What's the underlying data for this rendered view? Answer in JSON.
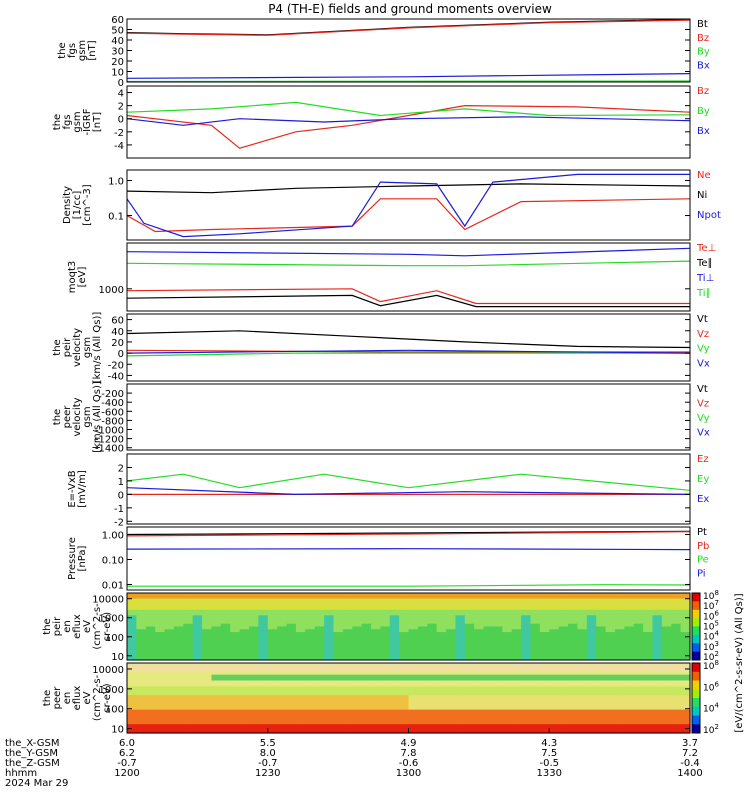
{
  "title": "P4 (TH-E) fields and ground moments overview",
  "colors": {
    "black": "#000000",
    "red": "#e8281e",
    "green": "#22dd22",
    "blue": "#1a1adc"
  },
  "chart_data": {
    "type": "line",
    "time_axis": {
      "ticks": [
        "1200",
        "1230",
        "1300",
        "1330",
        "1400"
      ],
      "date": "2024 Mar 29",
      "ephemeris": [
        {
          "label": "the_X-GSM",
          "values": [
            "6.0",
            "5.5",
            "4.9",
            "4.3",
            "3.7"
          ]
        },
        {
          "label": "the_Y-GSM",
          "values": [
            "6.2",
            "8.0",
            "7.8",
            "7.5",
            "7.2"
          ]
        },
        {
          "label": "the_Z-GSM",
          "values": [
            "-0.7",
            "-0.7",
            "-0.6",
            "-0.5",
            "-0.4"
          ]
        },
        {
          "label": "hhmm",
          "values": [
            "1200",
            "1230",
            "1300",
            "1330",
            "1400"
          ]
        }
      ]
    },
    "panels": [
      {
        "ylabel": [
          "the",
          "fgs",
          "gsm",
          "[nT]"
        ],
        "ylim": [
          0,
          60
        ],
        "ticks": [
          "0",
          "10",
          "20",
          "30",
          "40",
          "50",
          "60"
        ],
        "series": [
          {
            "name": "Bt",
            "color": "#000000",
            "points": [
              [
                0,
                47
              ],
              [
                0.1,
                46
              ],
              [
                0.25,
                45
              ],
              [
                0.5,
                52
              ],
              [
                0.75,
                57
              ],
              [
                1,
                59.5
              ]
            ]
          },
          {
            "name": "Bz",
            "color": "#e8281e",
            "points": [
              [
                0,
                46.5
              ],
              [
                0.1,
                45.5
              ],
              [
                0.25,
                44.5
              ],
              [
                0.5,
                51.5
              ],
              [
                0.75,
                56.5
              ],
              [
                1,
                59
              ]
            ]
          },
          {
            "name": "By",
            "color": "#22dd22",
            "points": [
              [
                0,
                0.5
              ],
              [
                0.5,
                0.8
              ],
              [
                1,
                1
              ]
            ]
          },
          {
            "name": "Bx",
            "color": "#1a1adc",
            "points": [
              [
                0,
                3.5
              ],
              [
                0.5,
                5
              ],
              [
                1,
                8
              ]
            ]
          }
        ]
      },
      {
        "ylabel": [
          "the",
          "fgs",
          "gsm",
          "-IGRF",
          "[nT]"
        ],
        "ylim": [
          -6,
          5
        ],
        "ticks": [
          "-4",
          "-2",
          "0",
          "2",
          "4"
        ],
        "series": [
          {
            "name": "Bz",
            "color": "#e8281e",
            "points": [
              [
                0,
                0.5
              ],
              [
                0.15,
                -1
              ],
              [
                0.2,
                -4.5
              ],
              [
                0.3,
                -2
              ],
              [
                0.4,
                -1
              ],
              [
                0.5,
                0.5
              ],
              [
                0.6,
                2
              ],
              [
                0.8,
                1.8
              ],
              [
                1,
                1
              ]
            ]
          },
          {
            "name": "By",
            "color": "#22dd22",
            "points": [
              [
                0,
                1
              ],
              [
                0.15,
                1.5
              ],
              [
                0.3,
                2.5
              ],
              [
                0.45,
                0.5
              ],
              [
                0.6,
                1.5
              ],
              [
                0.75,
                0.5
              ],
              [
                1,
                0.6
              ]
            ]
          },
          {
            "name": "Bx",
            "color": "#1a1adc",
            "points": [
              [
                0,
                0
              ],
              [
                0.1,
                -1
              ],
              [
                0.2,
                0
              ],
              [
                0.35,
                -0.5
              ],
              [
                0.5,
                0
              ],
              [
                0.7,
                0.3
              ],
              [
                1,
                -0.3
              ]
            ]
          }
        ]
      },
      {
        "ylabel": [
          "Density",
          "[1/cc]",
          "[cm^-3]"
        ],
        "scale": "log",
        "ylim": [
          0.02,
          2
        ],
        "ticks": [
          "1.0",
          "0.1"
        ],
        "series": [
          {
            "name": "Ne",
            "color": "#e8281e",
            "points": [
              [
                0,
                0.1
              ],
              [
                0.05,
                0.035
              ],
              [
                0.15,
                0.04
              ],
              [
                0.4,
                0.05
              ],
              [
                0.45,
                0.3
              ],
              [
                0.55,
                0.3
              ],
              [
                0.6,
                0.04
              ],
              [
                0.7,
                0.25
              ],
              [
                1,
                0.3
              ]
            ]
          },
          {
            "name": "Ni",
            "color": "#000000",
            "points": [
              [
                0,
                0.5
              ],
              [
                0.15,
                0.45
              ],
              [
                0.3,
                0.6
              ],
              [
                0.5,
                0.7
              ],
              [
                0.7,
                0.8
              ],
              [
                1,
                0.7
              ]
            ]
          },
          {
            "name": "Npot",
            "color": "#1a1adc",
            "points": [
              [
                0,
                0.3
              ],
              [
                0.03,
                0.06
              ],
              [
                0.1,
                0.025
              ],
              [
                0.2,
                0.03
              ],
              [
                0.4,
                0.05
              ],
              [
                0.45,
                0.9
              ],
              [
                0.55,
                0.8
              ],
              [
                0.6,
                0.05
              ],
              [
                0.65,
                0.9
              ],
              [
                0.8,
                1.5
              ],
              [
                1,
                1.5
              ]
            ]
          }
        ]
      },
      {
        "ylabel": [
          "moqt3",
          "[eV]"
        ],
        "scale": "log",
        "ylim": [
          300,
          12000
        ],
        "ticks": [
          "1000"
        ],
        "series": [
          {
            "name": "Te⊥",
            "color": "#e8281e",
            "points": [
              [
                0,
                900
              ],
              [
                0.4,
                1000
              ],
              [
                0.45,
                500
              ],
              [
                0.55,
                900
              ],
              [
                0.62,
                450
              ],
              [
                1,
                450
              ]
            ]
          },
          {
            "name": "Te∥",
            "color": "#000000",
            "points": [
              [
                0,
                600
              ],
              [
                0.4,
                700
              ],
              [
                0.45,
                400
              ],
              [
                0.55,
                700
              ],
              [
                0.62,
                380
              ],
              [
                1,
                380
              ]
            ]
          },
          {
            "name": "Ti⊥",
            "color": "#1a1adc",
            "points": [
              [
                0,
                7500
              ],
              [
                0.5,
                6500
              ],
              [
                0.6,
                6000
              ],
              [
                1,
                9000
              ]
            ]
          },
          {
            "name": "Ti∥",
            "color": "#22dd22",
            "points": [
              [
                0,
                4000
              ],
              [
                0.5,
                3500
              ],
              [
                0.6,
                3500
              ],
              [
                1,
                4500
              ]
            ]
          }
        ]
      },
      {
        "ylabel": [
          "the",
          "peir",
          "velocity",
          "gsm",
          "[km/s (All Qs)]"
        ],
        "ylim": [
          -50,
          70
        ],
        "ticks": [
          "-40",
          "-20",
          "0",
          "20",
          "40",
          "60"
        ],
        "series": [
          {
            "name": "Vt",
            "color": "#000000",
            "points": [
              [
                0,
                35
              ],
              [
                0.2,
                40
              ],
              [
                0.4,
                30
              ],
              [
                0.6,
                20
              ],
              [
                0.8,
                12
              ],
              [
                1,
                10
              ]
            ]
          },
          {
            "name": "Vz",
            "color": "#e8281e",
            "points": [
              [
                0,
                5
              ],
              [
                0.5,
                2
              ],
              [
                1,
                2
              ]
            ]
          },
          {
            "name": "Vy",
            "color": "#22dd22",
            "points": [
              [
                0,
                -5
              ],
              [
                0.3,
                0
              ],
              [
                1,
                0
              ]
            ]
          },
          {
            "name": "Vx",
            "color": "#1a1adc",
            "points": [
              [
                0,
                0
              ],
              [
                0.5,
                5
              ],
              [
                1,
                0
              ]
            ]
          }
        ]
      },
      {
        "ylabel": [
          "the",
          "peer",
          "velocity",
          "gsm",
          "[km/s (All Qs)]"
        ],
        "ylim": [
          -1450,
          0
        ],
        "ticks": [
          "-200",
          "-400",
          "-600",
          "-800",
          "-1000",
          "-1200",
          "-1400"
        ],
        "series": [
          {
            "name": "Vt",
            "color": "#000000",
            "points": []
          },
          {
            "name": "Vz",
            "color": "#e8281e",
            "points": []
          },
          {
            "name": "Vy",
            "color": "#22dd22",
            "points": []
          },
          {
            "name": "Vx",
            "color": "#1a1adc",
            "points": []
          }
        ]
      },
      {
        "ylabel": [
          "E=-VxB",
          "[mV/m]"
        ],
        "ylim": [
          -2.2,
          3
        ],
        "ticks": [
          "-2",
          "-1",
          "0",
          "1",
          "2"
        ],
        "series": [
          {
            "name": "Ez",
            "color": "#e8281e",
            "points": [
              [
                0,
                0
              ],
              [
                1,
                0
              ]
            ]
          },
          {
            "name": "Ey",
            "color": "#22dd22",
            "points": [
              [
                0,
                1
              ],
              [
                0.1,
                1.5
              ],
              [
                0.2,
                0.5
              ],
              [
                0.35,
                1.5
              ],
              [
                0.5,
                0.5
              ],
              [
                0.7,
                1.5
              ],
              [
                1,
                0.3
              ]
            ]
          },
          {
            "name": "Ex",
            "color": "#1a1adc",
            "points": [
              [
                0,
                0.5
              ],
              [
                0.3,
                0
              ],
              [
                0.6,
                0.2
              ],
              [
                1,
                0
              ]
            ]
          }
        ]
      },
      {
        "ylabel": [
          "Pressure",
          "[nPa]"
        ],
        "scale": "log",
        "ylim": [
          0.006,
          2
        ],
        "ticks": [
          "1.00",
          "0.10",
          "0.01"
        ],
        "series": [
          {
            "name": "Pt",
            "color": "#000000",
            "points": [
              [
                0,
                1.0
              ],
              [
                0.5,
                1.15
              ],
              [
                1,
                1.35
              ]
            ]
          },
          {
            "name": "Pb",
            "color": "#e8281e",
            "points": [
              [
                0,
                0.88
              ],
              [
                0.5,
                1.05
              ],
              [
                1,
                1.3
              ]
            ]
          },
          {
            "name": "Pe",
            "color": "#22dd22",
            "points": [
              [
                0,
                0.0085
              ],
              [
                0.5,
                0.0085
              ],
              [
                0.85,
                0.0098
              ],
              [
                1,
                0.0095
              ]
            ]
          },
          {
            "name": "Pi",
            "color": "#1a1adc",
            "points": [
              [
                0,
                0.26
              ],
              [
                0.5,
                0.27
              ],
              [
                1,
                0.25
              ]
            ]
          }
        ]
      },
      {
        "type": "heatmap",
        "ylabel": [
          "the",
          "peir",
          "en",
          "eflux",
          "eV",
          "(cm^2-s-",
          "sr-eV)"
        ],
        "scale": "log",
        "ylim": [
          6,
          20000
        ],
        "ticks": [
          "10000",
          "1000",
          "100",
          "10"
        ]
      },
      {
        "type": "heatmap",
        "ylabel": [
          "the",
          "peer",
          "en",
          "eflux",
          "eV",
          "(cm^2-s-",
          "sr-eV)"
        ],
        "scale": "log",
        "ylim": [
          6,
          20000
        ],
        "ticks": [
          "10000",
          "1000",
          "100",
          "10"
        ]
      }
    ],
    "colorbar": {
      "label": "[eV/(cm^2-s-sr-eV) (All Qs)]",
      "ticks": [
        "10^8",
        "10^7",
        "10^6",
        "10^5",
        "10^4",
        "10^3",
        "10^2"
      ],
      "ticks2": [
        "10^8",
        "10^6",
        "10^4",
        "10^2"
      ]
    }
  }
}
